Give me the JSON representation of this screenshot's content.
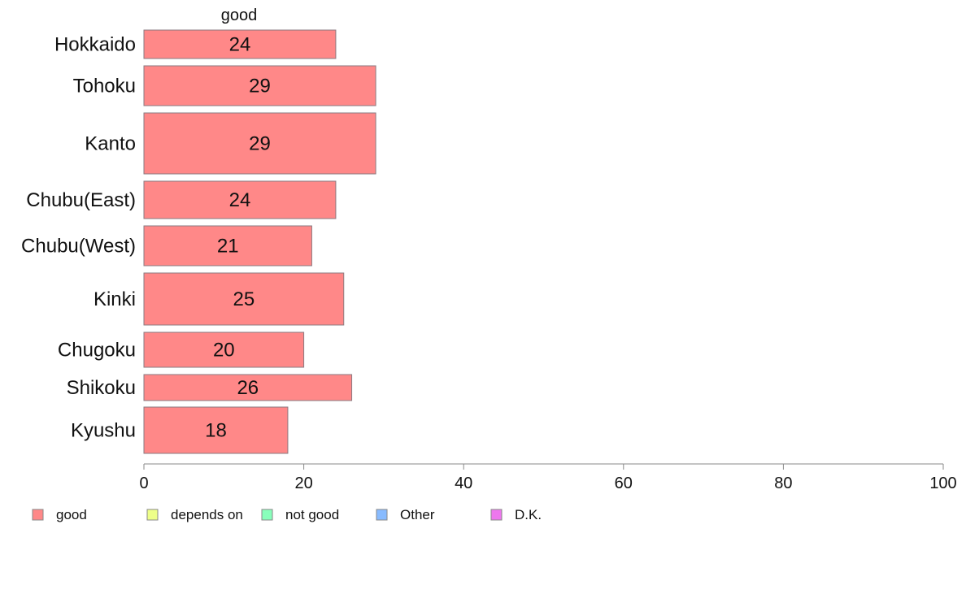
{
  "chart_data": {
    "type": "bar",
    "orientation": "horizontal",
    "stacked": true,
    "categories": [
      "Hokkaido",
      "Tohoku",
      "Kanto",
      "Chubu(East)",
      "Chubu(West)",
      "Kinki",
      "Chugoku",
      "Shikoku",
      "Kyushu"
    ],
    "series": [
      {
        "name": "good",
        "values": [
          24,
          29,
          29,
          24,
          21,
          25,
          20,
          26,
          18
        ],
        "color": "#ff8888"
      }
    ],
    "column_header": "good",
    "bar_labels": [
      "24",
      "29",
      "29",
      "24",
      "21",
      "25",
      "20",
      "26",
      "18"
    ],
    "xlim": [
      0,
      100
    ],
    "xticks": [
      0,
      20,
      40,
      60,
      80,
      100
    ],
    "grid": false,
    "legend": {
      "placement": "bottom",
      "items": [
        {
          "label": "good",
          "color": "#ff8888"
        },
        {
          "label": "depends on",
          "color": "#eeff88"
        },
        {
          "label": "not good",
          "color": "#88ffbb"
        },
        {
          "label": "Other",
          "color": "#88bbff"
        },
        {
          "label": "D.K.",
          "color": "#ee77ee"
        }
      ]
    }
  }
}
